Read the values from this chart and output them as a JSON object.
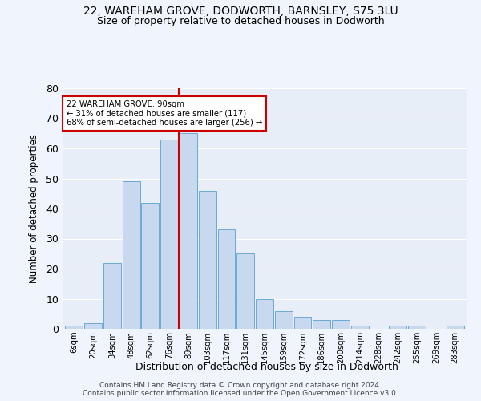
{
  "title1": "22, WAREHAM GROVE, DODWORTH, BARNSLEY, S75 3LU",
  "title2": "Size of property relative to detached houses in Dodworth",
  "xlabel": "Distribution of detached houses by size in Dodworth",
  "ylabel": "Number of detached properties",
  "categories": [
    "6sqm",
    "20sqm",
    "34sqm",
    "48sqm",
    "62sqm",
    "76sqm",
    "89sqm",
    "103sqm",
    "117sqm",
    "131sqm",
    "145sqm",
    "159sqm",
    "172sqm",
    "186sqm",
    "200sqm",
    "214sqm",
    "228sqm",
    "242sqm",
    "255sqm",
    "269sqm",
    "283sqm"
  ],
  "values": [
    1,
    2,
    22,
    49,
    42,
    63,
    65,
    46,
    33,
    25,
    10,
    6,
    4,
    3,
    3,
    1,
    0,
    1,
    1,
    0,
    1
  ],
  "bar_color": "#c8d9ef",
  "bar_edge_color": "#6aaad4",
  "bg_color": "#e8eef8",
  "grid_color": "#ffffff",
  "annotation_text": "22 WAREHAM GROVE: 90sqm\n← 31% of detached houses are smaller (117)\n68% of semi-detached houses are larger (256) →",
  "vline_index": 6,
  "vline_color": "#cc0000",
  "annotation_box_color": "#ffffff",
  "annotation_box_edge": "#cc0000",
  "ylim": [
    0,
    80
  ],
  "yticks": [
    0,
    10,
    20,
    30,
    40,
    50,
    60,
    70,
    80
  ],
  "footer1": "Contains HM Land Registry data © Crown copyright and database right 2024.",
  "footer2": "Contains public sector information licensed under the Open Government Licence v3.0."
}
